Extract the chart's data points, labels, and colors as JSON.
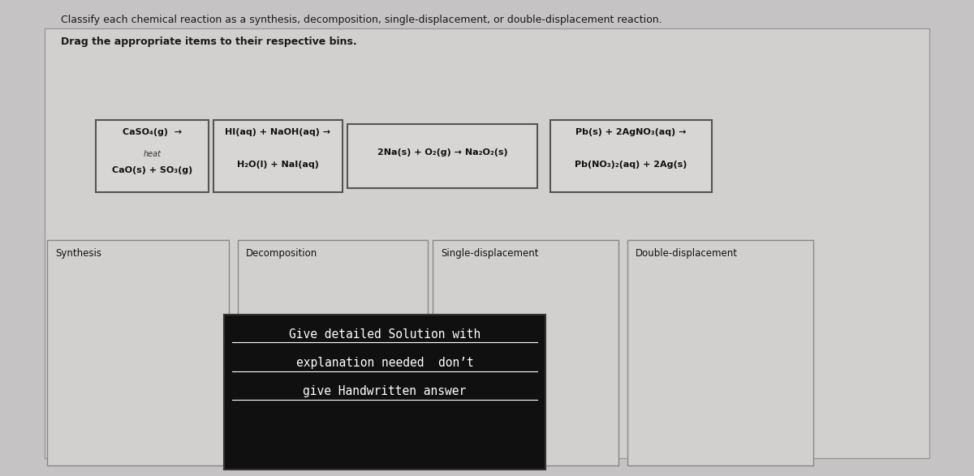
{
  "title_line1": "Classify each chemical reaction as a synthesis, decomposition, single-displacement, or double-displacement reaction.",
  "title_line2": "Drag the appropriate items to their respective bins.",
  "bins": [
    "Synthesis",
    "Decomposition",
    "Single-displacement",
    "Double-displacement"
  ],
  "overlay_text_line1": "Give detailed Solution with",
  "overlay_text_line2": "explanation needed  don’t",
  "overlay_text_line3": "give Handwritten answer",
  "bg_outer": "#c5c3c3",
  "bg_panel": "#d2d0cf",
  "bg_header": "#e8e6e5",
  "card_bg": "#d8d6d5",
  "card_edge": "#555555",
  "bin_bg": "#d2d0cf",
  "bin_edge": "#888888",
  "overlay_bg": "#101010",
  "overlay_fg": "#ffffff",
  "card1_l1": "CaSO₄(g)  →",
  "card1_l2": "heat",
  "card1_l3": "CaO(s) + SO₃(g)",
  "card2_l1": "HI(aq) + NaOH(aq) →",
  "card2_l2": "H₂O(l) + NaI(aq)",
  "card3_l1": "2Na(s) + O₂(g) → Na₂O₂(s)",
  "card4_l1": "Pb(s) + 2AgNO₃(aq) →",
  "card4_l2": "Pb(NO₃)₂(aq) + 2Ag(s)"
}
